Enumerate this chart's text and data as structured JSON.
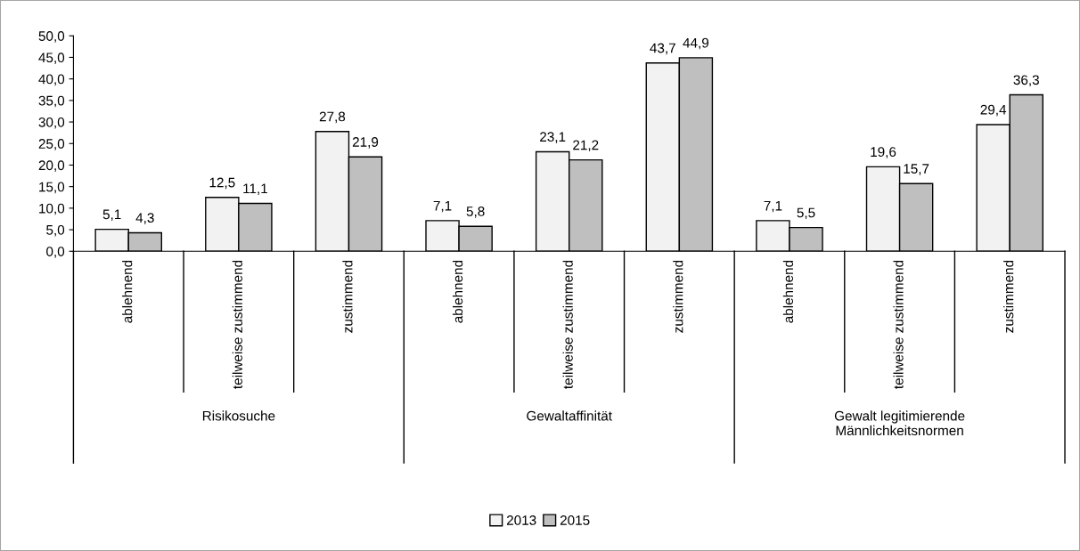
{
  "chart_data": {
    "type": "bar",
    "categories": [
      "ablehnend",
      "teilweise zustimmend",
      "zustimmend",
      "ablehnend",
      "teilweise zustimmend",
      "zustimmend",
      "ablehnend",
      "teilweise zustimmend",
      "zustimmend"
    ],
    "annotations": [
      "Risikosuche",
      "Gewaltaffinität",
      "Gewalt legitimierende\nMännlichkeitsnormen"
    ],
    "series": [
      {
        "name": "2013",
        "color": "#f2f2f2",
        "values": [
          5.1,
          12.5,
          27.8,
          7.1,
          23.1,
          43.7,
          7.1,
          19.6,
          29.4
        ],
        "value_labels": [
          "5,1",
          "12,5",
          "27,8",
          "7,1",
          "23,1",
          "43,7",
          "7,1",
          "19,6",
          "29,4"
        ]
      },
      {
        "name": "2015",
        "color": "#bfbfbf",
        "values": [
          4.3,
          11.1,
          21.9,
          5.8,
          21.2,
          44.9,
          5.5,
          15.7,
          36.3
        ],
        "value_labels": [
          "4,3",
          "11,1",
          "21,9",
          "5,8",
          "21,2",
          "44,9",
          "5,5",
          "15,7",
          "36,3"
        ]
      }
    ],
    "ylim": [
      0,
      50
    ],
    "yticks": [
      {
        "value": 0,
        "label": "0,0"
      },
      {
        "value": 5,
        "label": "5,0"
      },
      {
        "value": 10,
        "label": "10,0"
      },
      {
        "value": 15,
        "label": "15,0"
      },
      {
        "value": 20,
        "label": "20,0"
      },
      {
        "value": 25,
        "label": "25,0"
      },
      {
        "value": 30,
        "label": "30,0"
      },
      {
        "value": 35,
        "label": "35,0"
      },
      {
        "value": 40,
        "label": "40,0"
      },
      {
        "value": 45,
        "label": "45,0"
      },
      {
        "value": 50,
        "label": "50,0"
      }
    ],
    "grid": false,
    "legend": "bottom"
  }
}
